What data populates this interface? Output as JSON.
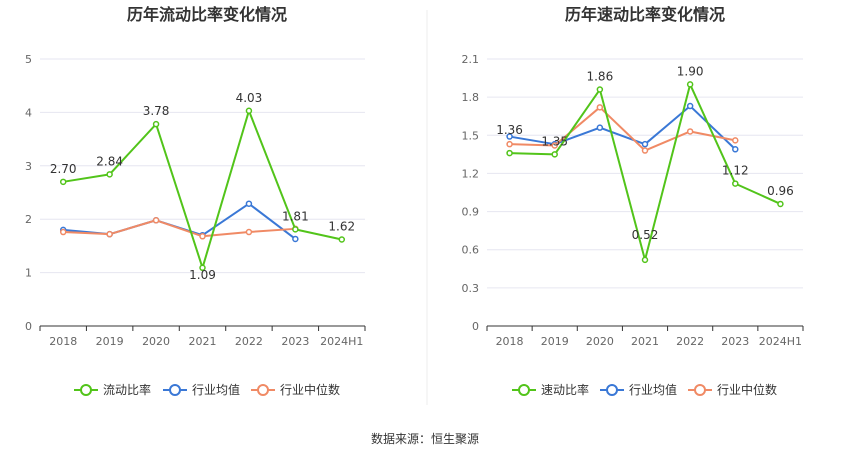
{
  "source_text": "数据来源：恒生聚源",
  "colors": {
    "green": "#52c41a",
    "blue": "#3a78d6",
    "orange": "#f08a65",
    "grid": "#e6e6f0",
    "axis": "#333333"
  },
  "chart_data": [
    {
      "type": "line",
      "title": "历年流动比率变化情况",
      "categories": [
        "2018",
        "2019",
        "2020",
        "2021",
        "2022",
        "2023",
        "2024H1"
      ],
      "ylim": [
        0,
        5
      ],
      "yticks": [
        "0",
        "1",
        "2",
        "3",
        "4",
        "5"
      ],
      "legend_position": "bottom",
      "series": [
        {
          "name": "流动比率",
          "color": "#52c41a",
          "values": [
            2.7,
            2.84,
            3.78,
            1.09,
            4.03,
            1.81,
            1.62
          ],
          "labels": [
            "2.70",
            "2.84",
            "3.78",
            "1.09",
            "4.03",
            "1.81",
            "1.62"
          ]
        },
        {
          "name": "行业均值",
          "color": "#3a78d6",
          "values": [
            1.8,
            1.72,
            1.98,
            1.7,
            2.29,
            1.63,
            null
          ]
        },
        {
          "name": "行业中位数",
          "color": "#f08a65",
          "values": [
            1.76,
            1.72,
            1.98,
            1.68,
            1.76,
            1.82,
            null
          ]
        }
      ]
    },
    {
      "type": "line",
      "title": "历年速动比率变化情况",
      "categories": [
        "2018",
        "2019",
        "2020",
        "2021",
        "2022",
        "2023",
        "2024H1"
      ],
      "ylim": [
        0,
        2.1
      ],
      "yticks": [
        "0",
        "0.3",
        "0.6",
        "0.9",
        "1.2",
        "1.5",
        "1.8",
        "2.1"
      ],
      "legend_position": "bottom",
      "series": [
        {
          "name": "速动比率",
          "color": "#52c41a",
          "values": [
            1.36,
            1.35,
            1.86,
            0.52,
            1.9,
            1.12,
            0.96
          ],
          "labels": [
            "1.36",
            "1.35",
            "1.86",
            "0.52",
            "1.90",
            "1.12",
            "0.96"
          ]
        },
        {
          "name": "行业均值",
          "color": "#3a78d6",
          "values": [
            1.49,
            1.43,
            1.56,
            1.43,
            1.73,
            1.39,
            null
          ]
        },
        {
          "name": "行业中位数",
          "color": "#f08a65",
          "values": [
            1.43,
            1.42,
            1.72,
            1.38,
            1.53,
            1.46,
            null
          ]
        }
      ]
    }
  ]
}
